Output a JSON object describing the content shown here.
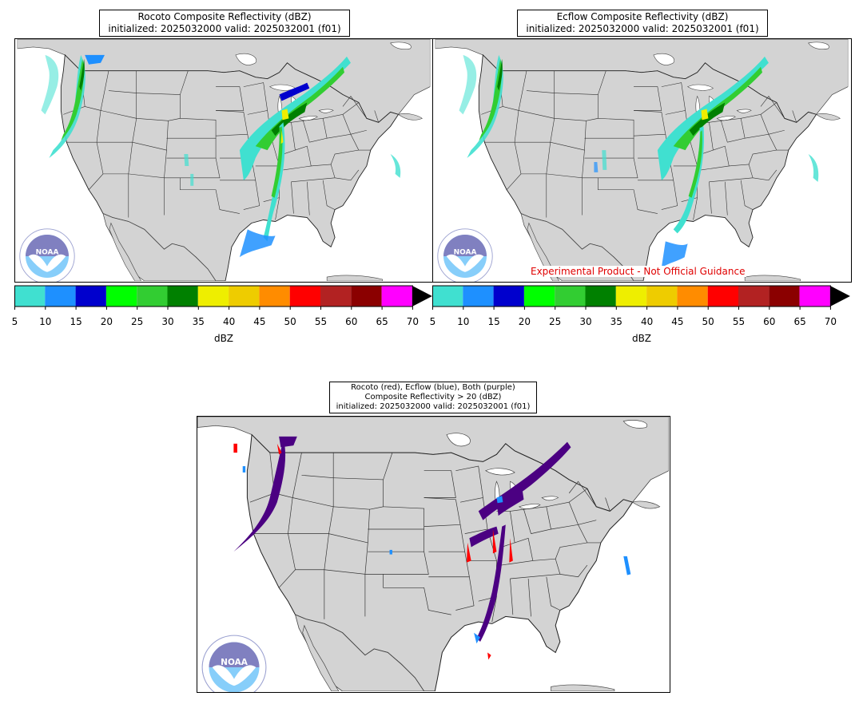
{
  "panels": [
    {
      "title_line1": "Rocoto Composite Reflectivity (dBZ)",
      "title_line2": "initialized: 2025032000 valid: 2025032001 (f01)"
    },
    {
      "title_line1": "Ecflow Composite Reflectivity (dBZ)",
      "title_line2": "initialized: 2025032000 valid: 2025032001 (f01)"
    }
  ],
  "diff_panel": {
    "title_line1": "Rocoto (red), Ecflow (blue), Both (purple)",
    "title_line2": "Composite Reflectivity > 20 (dBZ)",
    "title_line3": "initialized: 2025032000 valid: 2025032001 (f01)",
    "colors": {
      "rocoto": "#ff0000",
      "ecflow": "#1e90ff",
      "both": "#4b0082"
    }
  },
  "colorbar": {
    "unit": "dBZ",
    "ticks": [
      "5",
      "10",
      "15",
      "20",
      "25",
      "30",
      "35",
      "40",
      "45",
      "50",
      "55",
      "60",
      "65",
      "70"
    ],
    "colors": [
      "#40e0d0",
      "#1e90ff",
      "#0000cd",
      "#00ff00",
      "#32cd32",
      "#008000",
      "#eeee00",
      "#eecc00",
      "#ff8c00",
      "#ff0000",
      "#b22222",
      "#8b0000",
      "#ff00ff"
    ],
    "extend_color": "#000000"
  },
  "disclaimer": "Experimental Product - Not Official Guidance",
  "logo": {
    "text": "NOAA",
    "ring": "NATIONAL OCEANIC AND ATMOSPHERIC ADMINISTRATION · U.S. DEPARTMENT OF COMMERCE"
  }
}
